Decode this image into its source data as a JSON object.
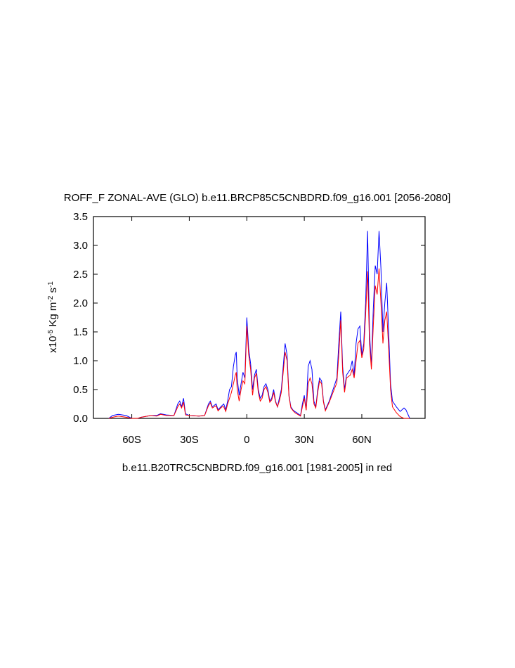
{
  "chart_data": {
    "type": "line",
    "title": "ROFF_F ZONAL-AVE (GLO) b.e11.BRCP85C5CNBDRD.f09_g16.001 [2056-2080]",
    "caption": "b.e11.B20TRC5CNBDRD.f09_g16.001 [1981-2005] in red",
    "ylabel_parts": [
      "x10",
      "-5",
      " Kg m",
      "-2",
      " s",
      "-1"
    ],
    "xlim": [
      -80,
      93
    ],
    "ylim": [
      0,
      3.5
    ],
    "xticks": [
      {
        "value": -60,
        "label": "60S"
      },
      {
        "value": -30,
        "label": "30S"
      },
      0,
      {
        "value": 30,
        "label": "30N"
      },
      {
        "value": 60,
        "label": "60N"
      }
    ],
    "yticks": [
      {
        "value": 0,
        "label": "0.0"
      },
      0.5,
      {
        "value": 1,
        "label": "1.0"
      },
      1.5,
      {
        "value": 2,
        "label": "2.0"
      },
      2.5,
      {
        "value": 3,
        "label": "3.0"
      },
      3.5
    ],
    "x": [
      -72,
      -70,
      -67,
      -63,
      -60,
      -57,
      -55,
      -50,
      -47,
      -45,
      -42,
      -38,
      -36,
      -35,
      -34,
      -33,
      -32,
      -30,
      -25,
      -22,
      -20,
      -19,
      -18,
      -16,
      -15,
      -13,
      -12,
      -11,
      -10,
      -9,
      -8,
      -7,
      -6,
      -5.5,
      -5,
      -4,
      -3,
      -2,
      -1,
      0,
      1,
      2,
      3,
      4,
      5,
      6,
      7,
      8,
      9,
      10,
      11,
      12,
      13,
      14,
      15,
      16,
      17,
      18,
      19,
      20,
      21,
      22,
      23,
      24,
      25,
      26,
      28,
      29,
      30,
      31,
      32,
      33,
      34,
      35,
      36,
      37,
      38,
      39,
      40,
      41,
      43,
      45,
      47,
      48,
      49,
      50,
      51,
      52,
      54,
      55,
      56,
      57,
      58,
      59,
      60,
      61,
      62,
      63,
      64,
      65,
      66,
      67,
      68,
      69,
      70,
      71,
      72,
      73,
      74,
      75,
      76,
      78,
      80,
      82,
      83,
      85
    ],
    "series": [
      {
        "color": "#0000ff",
        "values": [
          0,
          0.05,
          0.07,
          0.05,
          0,
          0,
          0.02,
          0.05,
          0.05,
          0.08,
          0.06,
          0.05,
          0.25,
          0.3,
          0.2,
          0.35,
          0.08,
          0.05,
          0.04,
          0.05,
          0.25,
          0.3,
          0.2,
          0.25,
          0.15,
          0.22,
          0.25,
          0.15,
          0.3,
          0.5,
          0.55,
          0.9,
          1.1,
          1.15,
          0.7,
          0.4,
          0.6,
          0.8,
          0.7,
          1.75,
          1.2,
          0.95,
          0.5,
          0.75,
          0.85,
          0.5,
          0.35,
          0.4,
          0.55,
          0.6,
          0.5,
          0.3,
          0.35,
          0.5,
          0.3,
          0.2,
          0.35,
          0.5,
          0.9,
          1.3,
          1.1,
          0.4,
          0.2,
          0.15,
          0.12,
          0.1,
          0.05,
          0.25,
          0.4,
          0.15,
          0.9,
          1.0,
          0.85,
          0.3,
          0.2,
          0.5,
          0.7,
          0.65,
          0.3,
          0.15,
          0.3,
          0.5,
          0.7,
          1.3,
          1.85,
          0.9,
          0.5,
          0.75,
          0.85,
          1.0,
          0.75,
          1.3,
          1.55,
          1.6,
          1.1,
          1.3,
          2.0,
          3.25,
          1.5,
          0.9,
          1.9,
          2.65,
          2.5,
          3.25,
          2.6,
          1.5,
          2.0,
          2.35,
          1.5,
          0.6,
          0.3,
          0.2,
          0.12,
          0.18,
          0.15,
          0
        ]
      },
      {
        "color": "#ff0000",
        "values": [
          0,
          0.02,
          0.04,
          0.02,
          0,
          0,
          0.02,
          0.05,
          0.04,
          0.07,
          0.05,
          0.05,
          0.2,
          0.25,
          0.18,
          0.28,
          0.06,
          0.05,
          0.04,
          0.05,
          0.22,
          0.27,
          0.18,
          0.22,
          0.13,
          0.2,
          0.2,
          0.12,
          0.25,
          0.35,
          0.45,
          0.6,
          0.75,
          0.8,
          0.5,
          0.3,
          0.5,
          0.65,
          0.6,
          1.6,
          1.1,
          0.85,
          0.4,
          0.7,
          0.78,
          0.45,
          0.3,
          0.35,
          0.5,
          0.55,
          0.45,
          0.28,
          0.32,
          0.45,
          0.28,
          0.2,
          0.3,
          0.45,
          0.8,
          1.15,
          1.0,
          0.38,
          0.18,
          0.14,
          0.1,
          0.08,
          0.04,
          0.2,
          0.35,
          0.14,
          0.6,
          0.7,
          0.6,
          0.25,
          0.18,
          0.45,
          0.65,
          0.6,
          0.28,
          0.13,
          0.28,
          0.45,
          0.62,
          1.1,
          1.7,
          0.8,
          0.45,
          0.7,
          0.75,
          0.85,
          0.7,
          1.0,
          1.3,
          1.35,
          1.05,
          1.2,
          1.8,
          2.55,
          1.3,
          0.85,
          1.6,
          2.3,
          2.15,
          2.6,
          2.0,
          1.3,
          1.7,
          1.85,
          1.2,
          0.5,
          0.2,
          0.1,
          0.03,
          0,
          0,
          0
        ]
      }
    ]
  }
}
